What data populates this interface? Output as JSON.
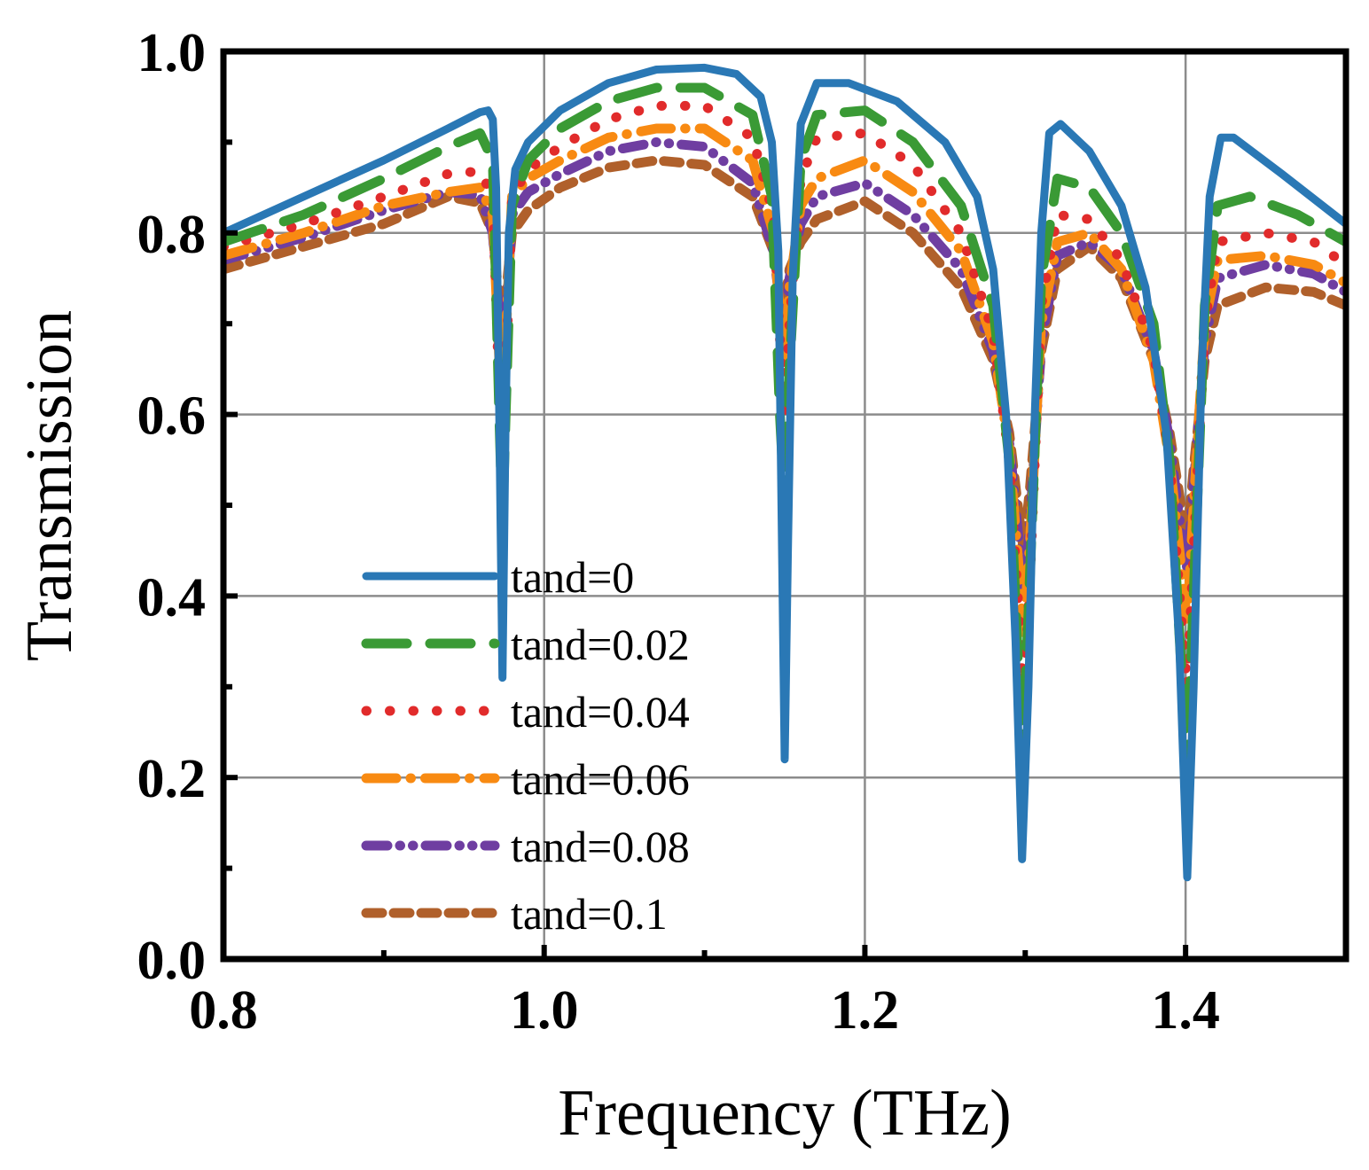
{
  "chart_data": {
    "type": "line",
    "title": "",
    "xlabel": "Frequency (THz)",
    "ylabel": "Transmission",
    "xlim": [
      0.8,
      1.5
    ],
    "ylim": [
      0.0,
      1.0
    ],
    "xticks": [
      "0.8",
      "1.0",
      "1.2",
      "1.4"
    ],
    "xtick_values": [
      0.8,
      1.0,
      1.2,
      1.4
    ],
    "yticks": [
      "0.0",
      "0.2",
      "0.4",
      "0.6",
      "0.8",
      "1.0"
    ],
    "ytick_values": [
      0.0,
      0.2,
      0.4,
      0.6,
      0.8,
      1.0
    ],
    "grid": true,
    "legend_position": "lower-left",
    "series": [
      {
        "name": "tand=0",
        "color": "#2a78b5",
        "style": "solid",
        "points": [
          [
            0.8,
            0.8
          ],
          [
            0.85,
            0.84
          ],
          [
            0.9,
            0.88
          ],
          [
            0.94,
            0.915
          ],
          [
            0.96,
            0.933
          ],
          [
            0.965,
            0.935
          ],
          [
            0.968,
            0.925
          ],
          [
            0.97,
            0.85
          ],
          [
            0.972,
            0.6
          ],
          [
            0.974,
            0.31
          ],
          [
            0.976,
            0.6
          ],
          [
            0.978,
            0.8
          ],
          [
            0.982,
            0.87
          ],
          [
            0.99,
            0.9
          ],
          [
            1.01,
            0.935
          ],
          [
            1.04,
            0.965
          ],
          [
            1.07,
            0.98
          ],
          [
            1.1,
            0.982
          ],
          [
            1.12,
            0.975
          ],
          [
            1.135,
            0.95
          ],
          [
            1.142,
            0.9
          ],
          [
            1.146,
            0.78
          ],
          [
            1.148,
            0.5
          ],
          [
            1.15,
            0.22
          ],
          [
            1.152,
            0.45
          ],
          [
            1.155,
            0.75
          ],
          [
            1.16,
            0.92
          ],
          [
            1.17,
            0.965
          ],
          [
            1.19,
            0.965
          ],
          [
            1.22,
            0.945
          ],
          [
            1.25,
            0.9
          ],
          [
            1.27,
            0.84
          ],
          [
            1.28,
            0.76
          ],
          [
            1.288,
            0.6
          ],
          [
            1.294,
            0.35
          ],
          [
            1.298,
            0.11
          ],
          [
            1.302,
            0.3
          ],
          [
            1.306,
            0.6
          ],
          [
            1.31,
            0.8
          ],
          [
            1.315,
            0.91
          ],
          [
            1.322,
            0.92
          ],
          [
            1.34,
            0.89
          ],
          [
            1.36,
            0.83
          ],
          [
            1.375,
            0.74
          ],
          [
            1.388,
            0.58
          ],
          [
            1.396,
            0.35
          ],
          [
            1.401,
            0.09
          ],
          [
            1.405,
            0.3
          ],
          [
            1.41,
            0.65
          ],
          [
            1.415,
            0.84
          ],
          [
            1.422,
            0.905
          ],
          [
            1.43,
            0.905
          ],
          [
            1.46,
            0.865
          ],
          [
            1.5,
            0.81
          ]
        ]
      },
      {
        "name": "tand=0.02",
        "color": "#3a9a35",
        "style": "dashed",
        "points": [
          [
            0.8,
            0.79
          ],
          [
            0.85,
            0.82
          ],
          [
            0.9,
            0.86
          ],
          [
            0.94,
            0.895
          ],
          [
            0.96,
            0.91
          ],
          [
            0.968,
            0.88
          ],
          [
            0.972,
            0.6
          ],
          [
            0.974,
            0.48
          ],
          [
            0.976,
            0.6
          ],
          [
            0.98,
            0.83
          ],
          [
            0.99,
            0.88
          ],
          [
            1.01,
            0.915
          ],
          [
            1.04,
            0.945
          ],
          [
            1.07,
            0.96
          ],
          [
            1.1,
            0.96
          ],
          [
            1.13,
            0.93
          ],
          [
            1.142,
            0.84
          ],
          [
            1.147,
            0.6
          ],
          [
            1.15,
            0.5
          ],
          [
            1.153,
            0.65
          ],
          [
            1.16,
            0.88
          ],
          [
            1.17,
            0.93
          ],
          [
            1.2,
            0.935
          ],
          [
            1.23,
            0.9
          ],
          [
            1.26,
            0.83
          ],
          [
            1.28,
            0.72
          ],
          [
            1.29,
            0.55
          ],
          [
            1.295,
            0.35
          ],
          [
            1.298,
            0.22
          ],
          [
            1.302,
            0.38
          ],
          [
            1.31,
            0.75
          ],
          [
            1.32,
            0.86
          ],
          [
            1.34,
            0.85
          ],
          [
            1.36,
            0.8
          ],
          [
            1.38,
            0.7
          ],
          [
            1.39,
            0.55
          ],
          [
            1.398,
            0.3
          ],
          [
            1.401,
            0.21
          ],
          [
            1.405,
            0.4
          ],
          [
            1.412,
            0.72
          ],
          [
            1.42,
            0.83
          ],
          [
            1.44,
            0.84
          ],
          [
            1.47,
            0.82
          ],
          [
            1.5,
            0.79
          ]
        ]
      },
      {
        "name": "tand=0.04",
        "color": "#e12b2b",
        "style": "dotted",
        "points": [
          [
            0.8,
            0.785
          ],
          [
            0.85,
            0.81
          ],
          [
            0.9,
            0.84
          ],
          [
            0.94,
            0.865
          ],
          [
            0.96,
            0.868
          ],
          [
            0.968,
            0.84
          ],
          [
            0.972,
            0.62
          ],
          [
            0.974,
            0.56
          ],
          [
            0.976,
            0.64
          ],
          [
            0.98,
            0.84
          ],
          [
            0.99,
            0.87
          ],
          [
            1.01,
            0.895
          ],
          [
            1.04,
            0.925
          ],
          [
            1.07,
            0.94
          ],
          [
            1.1,
            0.94
          ],
          [
            1.13,
            0.905
          ],
          [
            1.143,
            0.82
          ],
          [
            1.148,
            0.65
          ],
          [
            1.15,
            0.6
          ],
          [
            1.153,
            0.7
          ],
          [
            1.16,
            0.86
          ],
          [
            1.17,
            0.905
          ],
          [
            1.2,
            0.91
          ],
          [
            1.23,
            0.875
          ],
          [
            1.26,
            0.8
          ],
          [
            1.28,
            0.69
          ],
          [
            1.29,
            0.55
          ],
          [
            1.296,
            0.38
          ],
          [
            1.299,
            0.29
          ],
          [
            1.303,
            0.42
          ],
          [
            1.31,
            0.72
          ],
          [
            1.32,
            0.82
          ],
          [
            1.34,
            0.815
          ],
          [
            1.36,
            0.77
          ],
          [
            1.38,
            0.67
          ],
          [
            1.39,
            0.55
          ],
          [
            1.398,
            0.36
          ],
          [
            1.401,
            0.3
          ],
          [
            1.405,
            0.45
          ],
          [
            1.412,
            0.7
          ],
          [
            1.42,
            0.79
          ],
          [
            1.45,
            0.8
          ],
          [
            1.48,
            0.79
          ],
          [
            1.5,
            0.765
          ]
        ]
      },
      {
        "name": "tand=0.06",
        "color": "#f88a12",
        "style": "dash-dot",
        "points": [
          [
            0.8,
            0.775
          ],
          [
            0.85,
            0.8
          ],
          [
            0.9,
            0.83
          ],
          [
            0.94,
            0.845
          ],
          [
            0.96,
            0.85
          ],
          [
            0.968,
            0.82
          ],
          [
            0.972,
            0.66
          ],
          [
            0.974,
            0.62
          ],
          [
            0.976,
            0.68
          ],
          [
            0.98,
            0.84
          ],
          [
            0.99,
            0.86
          ],
          [
            1.01,
            0.88
          ],
          [
            1.04,
            0.905
          ],
          [
            1.07,
            0.915
          ],
          [
            1.1,
            0.915
          ],
          [
            1.13,
            0.88
          ],
          [
            1.143,
            0.8
          ],
          [
            1.148,
            0.69
          ],
          [
            1.15,
            0.66
          ],
          [
            1.153,
            0.74
          ],
          [
            1.16,
            0.83
          ],
          [
            1.17,
            0.86
          ],
          [
            1.2,
            0.88
          ],
          [
            1.23,
            0.845
          ],
          [
            1.26,
            0.78
          ],
          [
            1.28,
            0.68
          ],
          [
            1.29,
            0.56
          ],
          [
            1.296,
            0.43
          ],
          [
            1.299,
            0.36
          ],
          [
            1.303,
            0.46
          ],
          [
            1.31,
            0.7
          ],
          [
            1.32,
            0.79
          ],
          [
            1.34,
            0.8
          ],
          [
            1.36,
            0.76
          ],
          [
            1.38,
            0.66
          ],
          [
            1.39,
            0.55
          ],
          [
            1.398,
            0.42
          ],
          [
            1.401,
            0.37
          ],
          [
            1.405,
            0.5
          ],
          [
            1.412,
            0.7
          ],
          [
            1.42,
            0.77
          ],
          [
            1.45,
            0.775
          ],
          [
            1.48,
            0.765
          ],
          [
            1.5,
            0.745
          ]
        ]
      },
      {
        "name": "tand=0.08",
        "color": "#6f3ea1",
        "style": "dash-dot-dot",
        "points": [
          [
            0.8,
            0.77
          ],
          [
            0.85,
            0.795
          ],
          [
            0.9,
            0.825
          ],
          [
            0.94,
            0.845
          ],
          [
            0.96,
            0.842
          ],
          [
            0.968,
            0.8
          ],
          [
            0.972,
            0.7
          ],
          [
            0.974,
            0.66
          ],
          [
            0.976,
            0.7
          ],
          [
            0.98,
            0.82
          ],
          [
            0.99,
            0.845
          ],
          [
            1.01,
            0.865
          ],
          [
            1.04,
            0.89
          ],
          [
            1.07,
            0.9
          ],
          [
            1.1,
            0.895
          ],
          [
            1.13,
            0.855
          ],
          [
            1.143,
            0.78
          ],
          [
            1.148,
            0.71
          ],
          [
            1.15,
            0.68
          ],
          [
            1.153,
            0.75
          ],
          [
            1.16,
            0.81
          ],
          [
            1.17,
            0.84
          ],
          [
            1.2,
            0.855
          ],
          [
            1.23,
            0.82
          ],
          [
            1.26,
            0.76
          ],
          [
            1.28,
            0.67
          ],
          [
            1.29,
            0.57
          ],
          [
            1.296,
            0.46
          ],
          [
            1.299,
            0.4
          ],
          [
            1.303,
            0.48
          ],
          [
            1.31,
            0.68
          ],
          [
            1.32,
            0.775
          ],
          [
            1.34,
            0.79
          ],
          [
            1.36,
            0.76
          ],
          [
            1.38,
            0.67
          ],
          [
            1.39,
            0.57
          ],
          [
            1.398,
            0.46
          ],
          [
            1.401,
            0.43
          ],
          [
            1.405,
            0.52
          ],
          [
            1.412,
            0.68
          ],
          [
            1.42,
            0.75
          ],
          [
            1.45,
            0.765
          ],
          [
            1.48,
            0.755
          ],
          [
            1.5,
            0.735
          ]
        ]
      },
      {
        "name": "tand=0.1",
        "color": "#b0602b",
        "style": "short-dash",
        "points": [
          [
            0.8,
            0.76
          ],
          [
            0.85,
            0.785
          ],
          [
            0.9,
            0.81
          ],
          [
            0.94,
            0.84
          ],
          [
            0.96,
            0.833
          ],
          [
            0.968,
            0.8
          ],
          [
            0.972,
            0.72
          ],
          [
            0.974,
            0.7
          ],
          [
            0.976,
            0.73
          ],
          [
            0.98,
            0.8
          ],
          [
            0.99,
            0.825
          ],
          [
            1.01,
            0.85
          ],
          [
            1.04,
            0.872
          ],
          [
            1.07,
            0.88
          ],
          [
            1.1,
            0.875
          ],
          [
            1.13,
            0.84
          ],
          [
            1.143,
            0.78
          ],
          [
            1.148,
            0.73
          ],
          [
            1.15,
            0.72
          ],
          [
            1.153,
            0.76
          ],
          [
            1.16,
            0.79
          ],
          [
            1.17,
            0.815
          ],
          [
            1.2,
            0.835
          ],
          [
            1.23,
            0.8
          ],
          [
            1.26,
            0.74
          ],
          [
            1.28,
            0.66
          ],
          [
            1.29,
            0.58
          ],
          [
            1.296,
            0.49
          ],
          [
            1.299,
            0.45
          ],
          [
            1.303,
            0.52
          ],
          [
            1.31,
            0.67
          ],
          [
            1.32,
            0.76
          ],
          [
            1.34,
            0.785
          ],
          [
            1.36,
            0.75
          ],
          [
            1.38,
            0.66
          ],
          [
            1.39,
            0.58
          ],
          [
            1.398,
            0.49
          ],
          [
            1.401,
            0.46
          ],
          [
            1.405,
            0.54
          ],
          [
            1.412,
            0.66
          ],
          [
            1.42,
            0.72
          ],
          [
            1.45,
            0.74
          ],
          [
            1.48,
            0.735
          ],
          [
            1.5,
            0.72
          ]
        ]
      }
    ]
  }
}
